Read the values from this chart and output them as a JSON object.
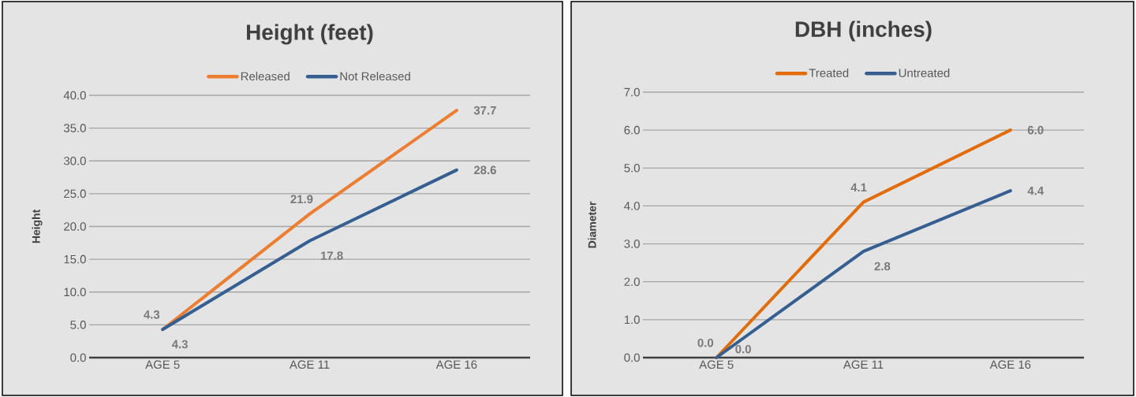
{
  "chart_data": [
    {
      "type": "line",
      "title": "Height (feet)",
      "ylabel": "Height",
      "categories": [
        "AGE 5",
        "AGE 11",
        "AGE 16"
      ],
      "series": [
        {
          "name": "Released",
          "color": "#ed7d31",
          "values": [
            4.3,
            21.9,
            37.7
          ],
          "value_labels": [
            "4.3",
            "21.9",
            "37.7"
          ]
        },
        {
          "name": "Not Released",
          "color": "#365f91",
          "values": [
            4.3,
            17.8,
            28.6
          ],
          "value_labels": [
            "4.3",
            "17.8",
            "28.6"
          ]
        }
      ],
      "ylim": [
        0,
        40
      ],
      "yticks": [
        {
          "value": 0,
          "label": "0.0"
        },
        {
          "value": 5,
          "label": "5.0"
        },
        {
          "value": 10,
          "label": "10.0"
        },
        {
          "value": 15,
          "label": "15.0"
        },
        {
          "value": 20,
          "label": "20.0"
        },
        {
          "value": 25,
          "label": "25.0"
        },
        {
          "value": 30,
          "label": "30.0"
        },
        {
          "value": 35,
          "label": "35.0"
        },
        {
          "value": 40,
          "label": "40.0"
        }
      ],
      "grid": "y",
      "legend": "top",
      "marker": "none",
      "line_style": "solid"
    },
    {
      "type": "line",
      "title": "DBH (inches)",
      "ylabel": "Diameter",
      "categories": [
        "AGE 5",
        "AGE 11",
        "AGE 16"
      ],
      "series": [
        {
          "name": "Treated",
          "color": "#e36c0a",
          "values": [
            0.0,
            4.1,
            6.0
          ],
          "value_labels": [
            "0.0",
            "4.1",
            "6.0"
          ]
        },
        {
          "name": "Untreated",
          "color": "#365f91",
          "values": [
            0.0,
            2.8,
            4.4
          ],
          "value_labels": [
            "0.0",
            "2.8",
            "4.4"
          ]
        }
      ],
      "ylim": [
        0,
        7
      ],
      "yticks": [
        {
          "value": 0,
          "label": "0.0"
        },
        {
          "value": 1,
          "label": "1.0"
        },
        {
          "value": 2,
          "label": "2.0"
        },
        {
          "value": 3,
          "label": "3.0"
        },
        {
          "value": 4,
          "label": "4.0"
        },
        {
          "value": 5,
          "label": "5.0"
        },
        {
          "value": 6,
          "label": "6.0"
        },
        {
          "value": 7,
          "label": "7.0"
        }
      ],
      "grid": "y",
      "legend": "top",
      "marker": "none",
      "line_style": "solid"
    }
  ]
}
